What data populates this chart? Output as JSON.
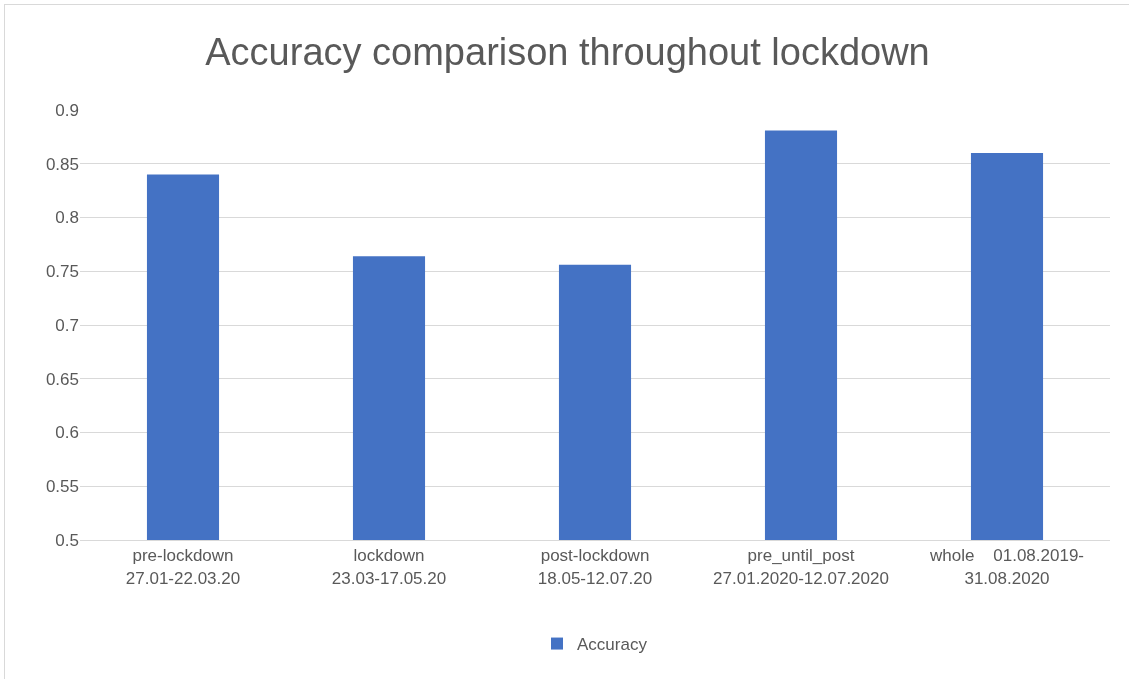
{
  "chart_data": {
    "type": "bar",
    "title": "Accuracy comparison throughout lockdown",
    "categories": [
      "pre-lockdown\n27.01-22.03.20",
      "lockdown\n23.03-17.05.20",
      "post-lockdown\n18.05-12.07.20",
      "pre_until_post\n27.01.2020-12.07.2020",
      "whole    01.08.2019-\n31.08.2020"
    ],
    "series": [
      {
        "name": "Accuracy",
        "color": "#4472c4",
        "values": [
          0.84,
          0.764,
          0.756,
          0.881,
          0.86
        ]
      }
    ],
    "ylim": [
      0.5,
      0.9
    ],
    "yticks": [
      0.5,
      0.55,
      0.6,
      0.65,
      0.7,
      0.75,
      0.8,
      0.85,
      0.9
    ],
    "grid": "y",
    "legend": "bottom"
  }
}
